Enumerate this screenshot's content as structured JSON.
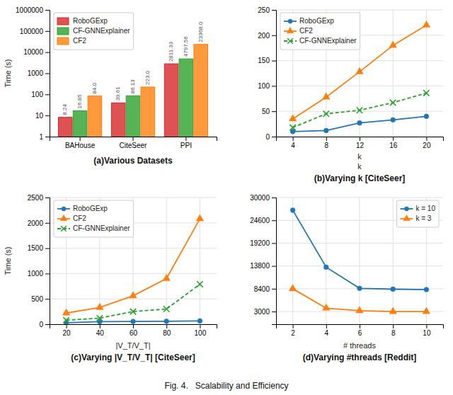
{
  "title": "Fig. 4.   Scalability and Efficiency",
  "chart_data": [
    {
      "type": "bar",
      "title": "(a)Various Datasets",
      "ylabel": "Time (s)",
      "categories": [
        "BAHouse",
        "CiteSeer",
        "PPI"
      ],
      "series": [
        {
          "name": "RoboGExp",
          "color": "#d62728",
          "values": [
            8.24,
            39.61,
            2811.33
          ]
        },
        {
          "name": "CF-GNNExplainer",
          "color": "#2ca02c",
          "values": [
            16.85,
            86.13,
            4797.56
          ]
        },
        {
          "name": "CF2",
          "color": "#ff7f0e",
          "values": [
            84.0,
            223.0,
            23368.0
          ],
          "value_labels": [
            "84.0",
            "223.0",
            "23368.0"
          ]
        }
      ],
      "log": "y",
      "ylim": [
        1,
        1000000
      ],
      "yticks": [
        1,
        10,
        100,
        1000,
        10000,
        100000,
        1000000
      ],
      "data_labels": true,
      "legend": "upper left",
      "grid": false
    },
    {
      "type": "line",
      "title": "(b)Varying k [CiteSeer]",
      "xlabel": "k",
      "annotations": [
        {
          "text": "k"
        }
      ],
      "x": [
        4,
        8,
        12,
        16,
        20
      ],
      "series": [
        {
          "name": "RoboGExp",
          "color": "#1f77b4",
          "marker": "circle",
          "line_style": "solid",
          "values": [
            10,
            12,
            27,
            33,
            40
          ]
        },
        {
          "name": "CF2",
          "color": "#ff7f0e",
          "marker": "triangle",
          "line_style": "solid",
          "values": [
            35,
            78,
            128,
            180,
            220
          ]
        },
        {
          "name": "CF-GNNExplainer",
          "color": "#2ca02c",
          "marker": "x",
          "line_style": "dashed",
          "values": [
            18,
            45,
            52,
            67,
            86
          ]
        }
      ],
      "xlim": [
        2,
        22
      ],
      "xticks": [
        4,
        8,
        12,
        16,
        20
      ],
      "ylim": [
        0,
        250
      ],
      "yticks": [
        0,
        50,
        100,
        150,
        200,
        250
      ],
      "grid": true,
      "legend": "upper left"
    },
    {
      "type": "line",
      "title": "(c)Varying |V_T/V_T| [CiteSeer]",
      "xlabel": "|V_T/V_T|",
      "ylabel": "Time (s)",
      "x": [
        20,
        40,
        60,
        80,
        100
      ],
      "series": [
        {
          "name": "RoboGExp",
          "color": "#1f77b4",
          "marker": "circle",
          "line_style": "solid",
          "values": [
            30,
            50,
            55,
            58,
            65
          ]
        },
        {
          "name": "CF2",
          "color": "#ff7f0e",
          "marker": "triangle",
          "line_style": "solid",
          "values": [
            220,
            330,
            560,
            900,
            2080
          ]
        },
        {
          "name": "CF-GNNExplainer",
          "color": "#2ca02c",
          "marker": "x",
          "line_style": "dashed",
          "values": [
            80,
            120,
            250,
            300,
            790
          ]
        }
      ],
      "xlim": [
        10,
        110
      ],
      "xticks": [
        20,
        40,
        60,
        80,
        100
      ],
      "ylim": [
        0,
        2500
      ],
      "yticks": [
        0,
        500,
        1000,
        1500,
        2000,
        2500
      ],
      "grid": true,
      "legend": "upper left"
    },
    {
      "type": "line",
      "title": "(d)Varying #threads [Reddit]",
      "xlabel": "# threads",
      "x": [
        2,
        4,
        6,
        8,
        10
      ],
      "series": [
        {
          "name": "k = 10",
          "color": "#1f77b4",
          "marker": "circle",
          "line_style": "solid",
          "values": [
            27000,
            13500,
            8500,
            8300,
            8200
          ]
        },
        {
          "name": "k = 3",
          "color": "#ff7f0e",
          "marker": "triangle",
          "line_style": "solid",
          "values": [
            8400,
            3800,
            3200,
            3000,
            3000
          ]
        }
      ],
      "xlim": [
        1,
        11
      ],
      "xticks": [
        2,
        4,
        6,
        8,
        10
      ],
      "ylim": [
        0,
        30000
      ],
      "yticks": [
        3000,
        8400,
        13800,
        19200,
        24600,
        30000
      ],
      "grid": true,
      "legend": "upper right"
    }
  ]
}
